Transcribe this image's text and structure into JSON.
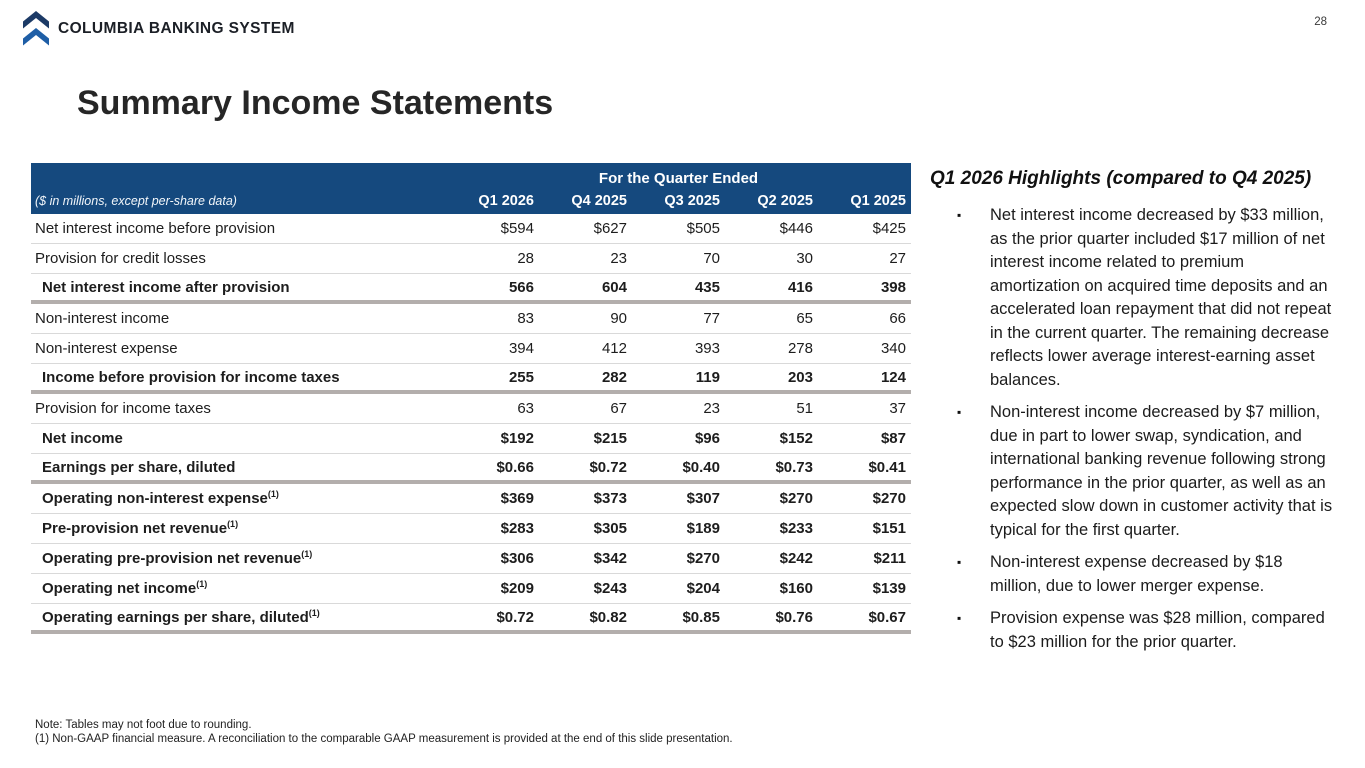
{
  "page": {
    "number": "28"
  },
  "brand": {
    "name": "COLUMBIA BANKING SYSTEM",
    "logo": "double-chevron-up-icon"
  },
  "title": "Summary Income Statements",
  "table": {
    "header": {
      "group_label": "For the Quarter Ended",
      "note": "($ in millions, except per-share data)",
      "columns": [
        "Q1 2026",
        "Q4 2025",
        "Q3 2025",
        "Q2 2025",
        "Q1 2025"
      ]
    },
    "rows": [
      {
        "label": "Net interest income before provision",
        "sup": "",
        "bold": false,
        "divider": "thin",
        "values": [
          "$594",
          "$627",
          "$505",
          "$446",
          "$425"
        ]
      },
      {
        "label": "Provision for credit losses",
        "sup": "",
        "bold": false,
        "divider": "thin",
        "values": [
          "28",
          "23",
          "70",
          "30",
          "27"
        ]
      },
      {
        "label": "Net interest income after provision",
        "sup": "",
        "bold": true,
        "divider": "thick",
        "values": [
          "566",
          "604",
          "435",
          "416",
          "398"
        ]
      },
      {
        "label": "Non-interest income",
        "sup": "",
        "bold": false,
        "divider": "thin",
        "values": [
          "83",
          "90",
          "77",
          "65",
          "66"
        ]
      },
      {
        "label": "Non-interest expense",
        "sup": "",
        "bold": false,
        "divider": "thin",
        "values": [
          "394",
          "412",
          "393",
          "278",
          "340"
        ]
      },
      {
        "label": "Income before provision for income taxes",
        "sup": "",
        "bold": true,
        "divider": "thick",
        "values": [
          "255",
          "282",
          "119",
          "203",
          "124"
        ]
      },
      {
        "label": "Provision for income taxes",
        "sup": "",
        "bold": false,
        "divider": "thin",
        "values": [
          "63",
          "67",
          "23",
          "51",
          "37"
        ]
      },
      {
        "label": "Net income",
        "sup": "",
        "bold": true,
        "divider": "thin",
        "values": [
          "$192",
          "$215",
          "$96",
          "$152",
          "$87"
        ]
      },
      {
        "label": "Earnings per share, diluted",
        "sup": "",
        "bold": true,
        "divider": "thick",
        "values": [
          "$0.66",
          "$0.72",
          "$0.40",
          "$0.73",
          "$0.41"
        ]
      },
      {
        "label": "Operating non-interest expense",
        "sup": "(1)",
        "bold": true,
        "divider": "thin",
        "values": [
          "$369",
          "$373",
          "$307",
          "$270",
          "$270"
        ]
      },
      {
        "label": "Pre-provision net revenue",
        "sup": "(1)",
        "bold": true,
        "divider": "thin",
        "values": [
          "$283",
          "$305",
          "$189",
          "$233",
          "$151"
        ]
      },
      {
        "label": "Operating pre-provision net revenue",
        "sup": "(1)",
        "bold": true,
        "divider": "thin",
        "values": [
          "$306",
          "$342",
          "$270",
          "$242",
          "$211"
        ]
      },
      {
        "label": "Operating net income",
        "sup": "(1)",
        "bold": true,
        "divider": "thin",
        "values": [
          "$209",
          "$243",
          "$204",
          "$160",
          "$139"
        ]
      },
      {
        "label": "Operating earnings per share, diluted",
        "sup": "(1)",
        "bold": true,
        "divider": "thick",
        "values": [
          "$0.72",
          "$0.82",
          "$0.85",
          "$0.76",
          "$0.67"
        ]
      }
    ]
  },
  "highlights": {
    "heading": "Q1 2026 Highlights (compared to Q4 2025)",
    "bullets": [
      "Net interest income decreased by $33 million, as the prior quarter included $17 million of net interest income related to premium amortization on acquired time deposits and an accelerated loan repayment that did not repeat in the current quarter. The remaining decrease reflects lower average interest-earning asset balances.",
      "Non-interest income decreased by $7 million, due in part to lower swap, syndication, and international banking revenue following strong performance in the prior quarter, as well as an expected slow down in customer activity that is typical for the first quarter.",
      "Non-interest expense decreased by $18 million, due to lower merger expense.",
      "Provision expense was $28 million, compared to $23 million for the prior quarter."
    ]
  },
  "footnotes": [
    "Note: Tables may not foot due to rounding.",
    "(1)  Non-GAAP financial measure.  A reconciliation to the comparable GAAP measurement is provided at the end of this slide presentation."
  ],
  "colors": {
    "header_bg": "#15497E",
    "logo_top": "#1C3A66",
    "logo_bottom": "#1E5EA6",
    "thick_divider": "#B3AEAC",
    "thin_divider": "#D9D9D9"
  }
}
